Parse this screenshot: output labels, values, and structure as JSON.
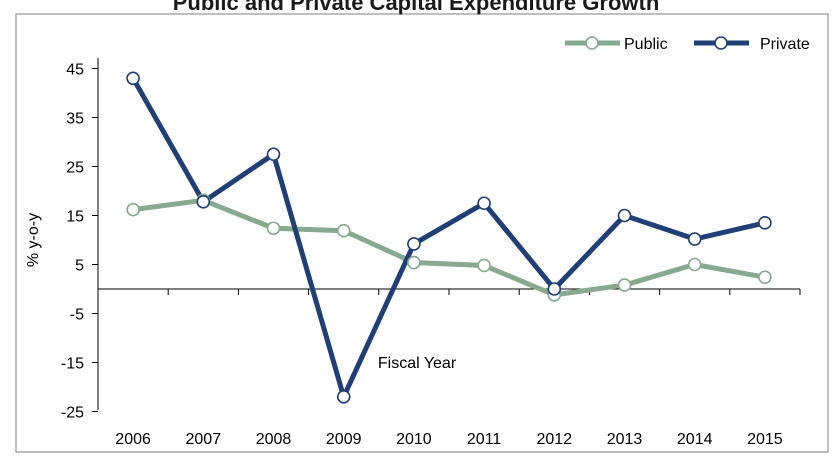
{
  "colors": {
    "public": "#86a98f",
    "private": "#1f3f76",
    "marker_fill": "#ffffff",
    "axis": "#000000",
    "frame": "#7f7f7f"
  },
  "chart_data": {
    "type": "line",
    "title": "Public and Private Capital Expenditure Growth",
    "ylabel": "% y-o-y",
    "categories": [
      "2006",
      "2007",
      "2008",
      "2009",
      "2010",
      "2011",
      "2012",
      "2013",
      "2014",
      "2015"
    ],
    "yticks": [
      45,
      35,
      25,
      15,
      5,
      -5,
      -15,
      -25
    ],
    "ylim": [
      -25,
      50
    ],
    "legend_position": "top-right",
    "grid": false,
    "annotations": [
      {
        "text": "Fiscal Year",
        "near_category": "2010"
      }
    ],
    "series": [
      {
        "name": "Public",
        "values": [
          16.2,
          18.1,
          12.4,
          11.9,
          5.4,
          4.8,
          -1.2,
          0.8,
          5.0,
          2.4
        ]
      },
      {
        "name": "Private",
        "values": [
          43.0,
          17.8,
          27.5,
          -22.0,
          9.2,
          17.5,
          0.0,
          15.0,
          10.2,
          13.5
        ]
      }
    ]
  }
}
